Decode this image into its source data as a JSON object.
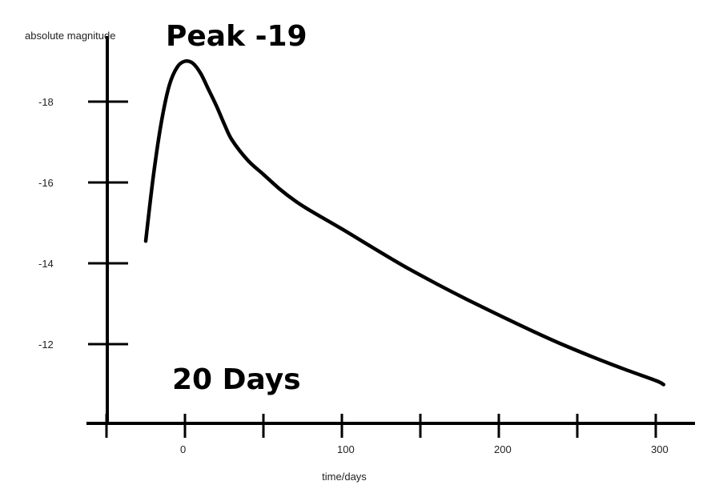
{
  "chart_data": {
    "type": "line",
    "title": "",
    "xlabel": "time/days",
    "ylabel": "absolute magnitude",
    "xlim": [
      -50,
      325
    ],
    "ylim": [
      -10,
      -19.5
    ],
    "x_axis_origin": -10,
    "x_ticks": [
      -50,
      0,
      50,
      100,
      150,
      200,
      250,
      300
    ],
    "x_tick_labels": [
      {
        "value": 0,
        "label": "0"
      },
      {
        "value": 100,
        "label": "100"
      },
      {
        "value": 200,
        "label": "200"
      },
      {
        "value": 300,
        "label": "300"
      }
    ],
    "y_ticks": [
      -18,
      -16,
      -14,
      -12
    ],
    "y_tick_labels": [
      {
        "value": -18,
        "label": "-18"
      },
      {
        "value": -16,
        "label": "-16"
      },
      {
        "value": -14,
        "label": "-14"
      },
      {
        "value": -12,
        "label": "-12"
      }
    ],
    "grid": false,
    "line_color": "#000000",
    "series": [
      {
        "x": [
          -25,
          -20,
          -15,
          -10,
          -5,
          0,
          5,
          10,
          15,
          20,
          25,
          30,
          40,
          50,
          60,
          70,
          80,
          100,
          120,
          140,
          160,
          180,
          200,
          220,
          240,
          260,
          280,
          300,
          305
        ],
        "values": [
          -14.55,
          -16.2,
          -17.5,
          -18.4,
          -18.85,
          -19.0,
          -18.95,
          -18.7,
          -18.3,
          -17.9,
          -17.45,
          -17.05,
          -16.55,
          -16.2,
          -15.85,
          -15.55,
          -15.3,
          -14.85,
          -14.38,
          -13.92,
          -13.5,
          -13.1,
          -12.72,
          -12.35,
          -12.0,
          -11.68,
          -11.38,
          -11.1,
          -11.0
        ]
      }
    ],
    "annotations": [
      {
        "text": "Peak -19"
      },
      {
        "text": "20 Days"
      }
    ]
  }
}
